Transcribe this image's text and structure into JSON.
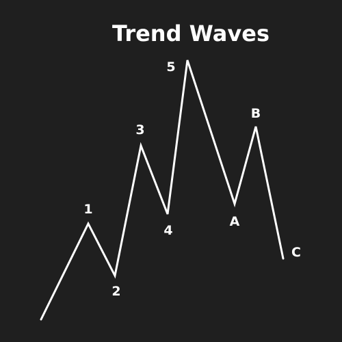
{
  "title": "Trend Waves",
  "colors": {
    "background": "#1f1f1f",
    "line": "#ffffff",
    "text": "#ffffff"
  },
  "waves": [
    {
      "label": ""
    },
    {
      "label": "1"
    },
    {
      "label": "2"
    },
    {
      "label": "3"
    },
    {
      "label": "4"
    },
    {
      "label": "5"
    },
    {
      "label": "A"
    },
    {
      "label": "B"
    },
    {
      "label": "C"
    }
  ]
}
